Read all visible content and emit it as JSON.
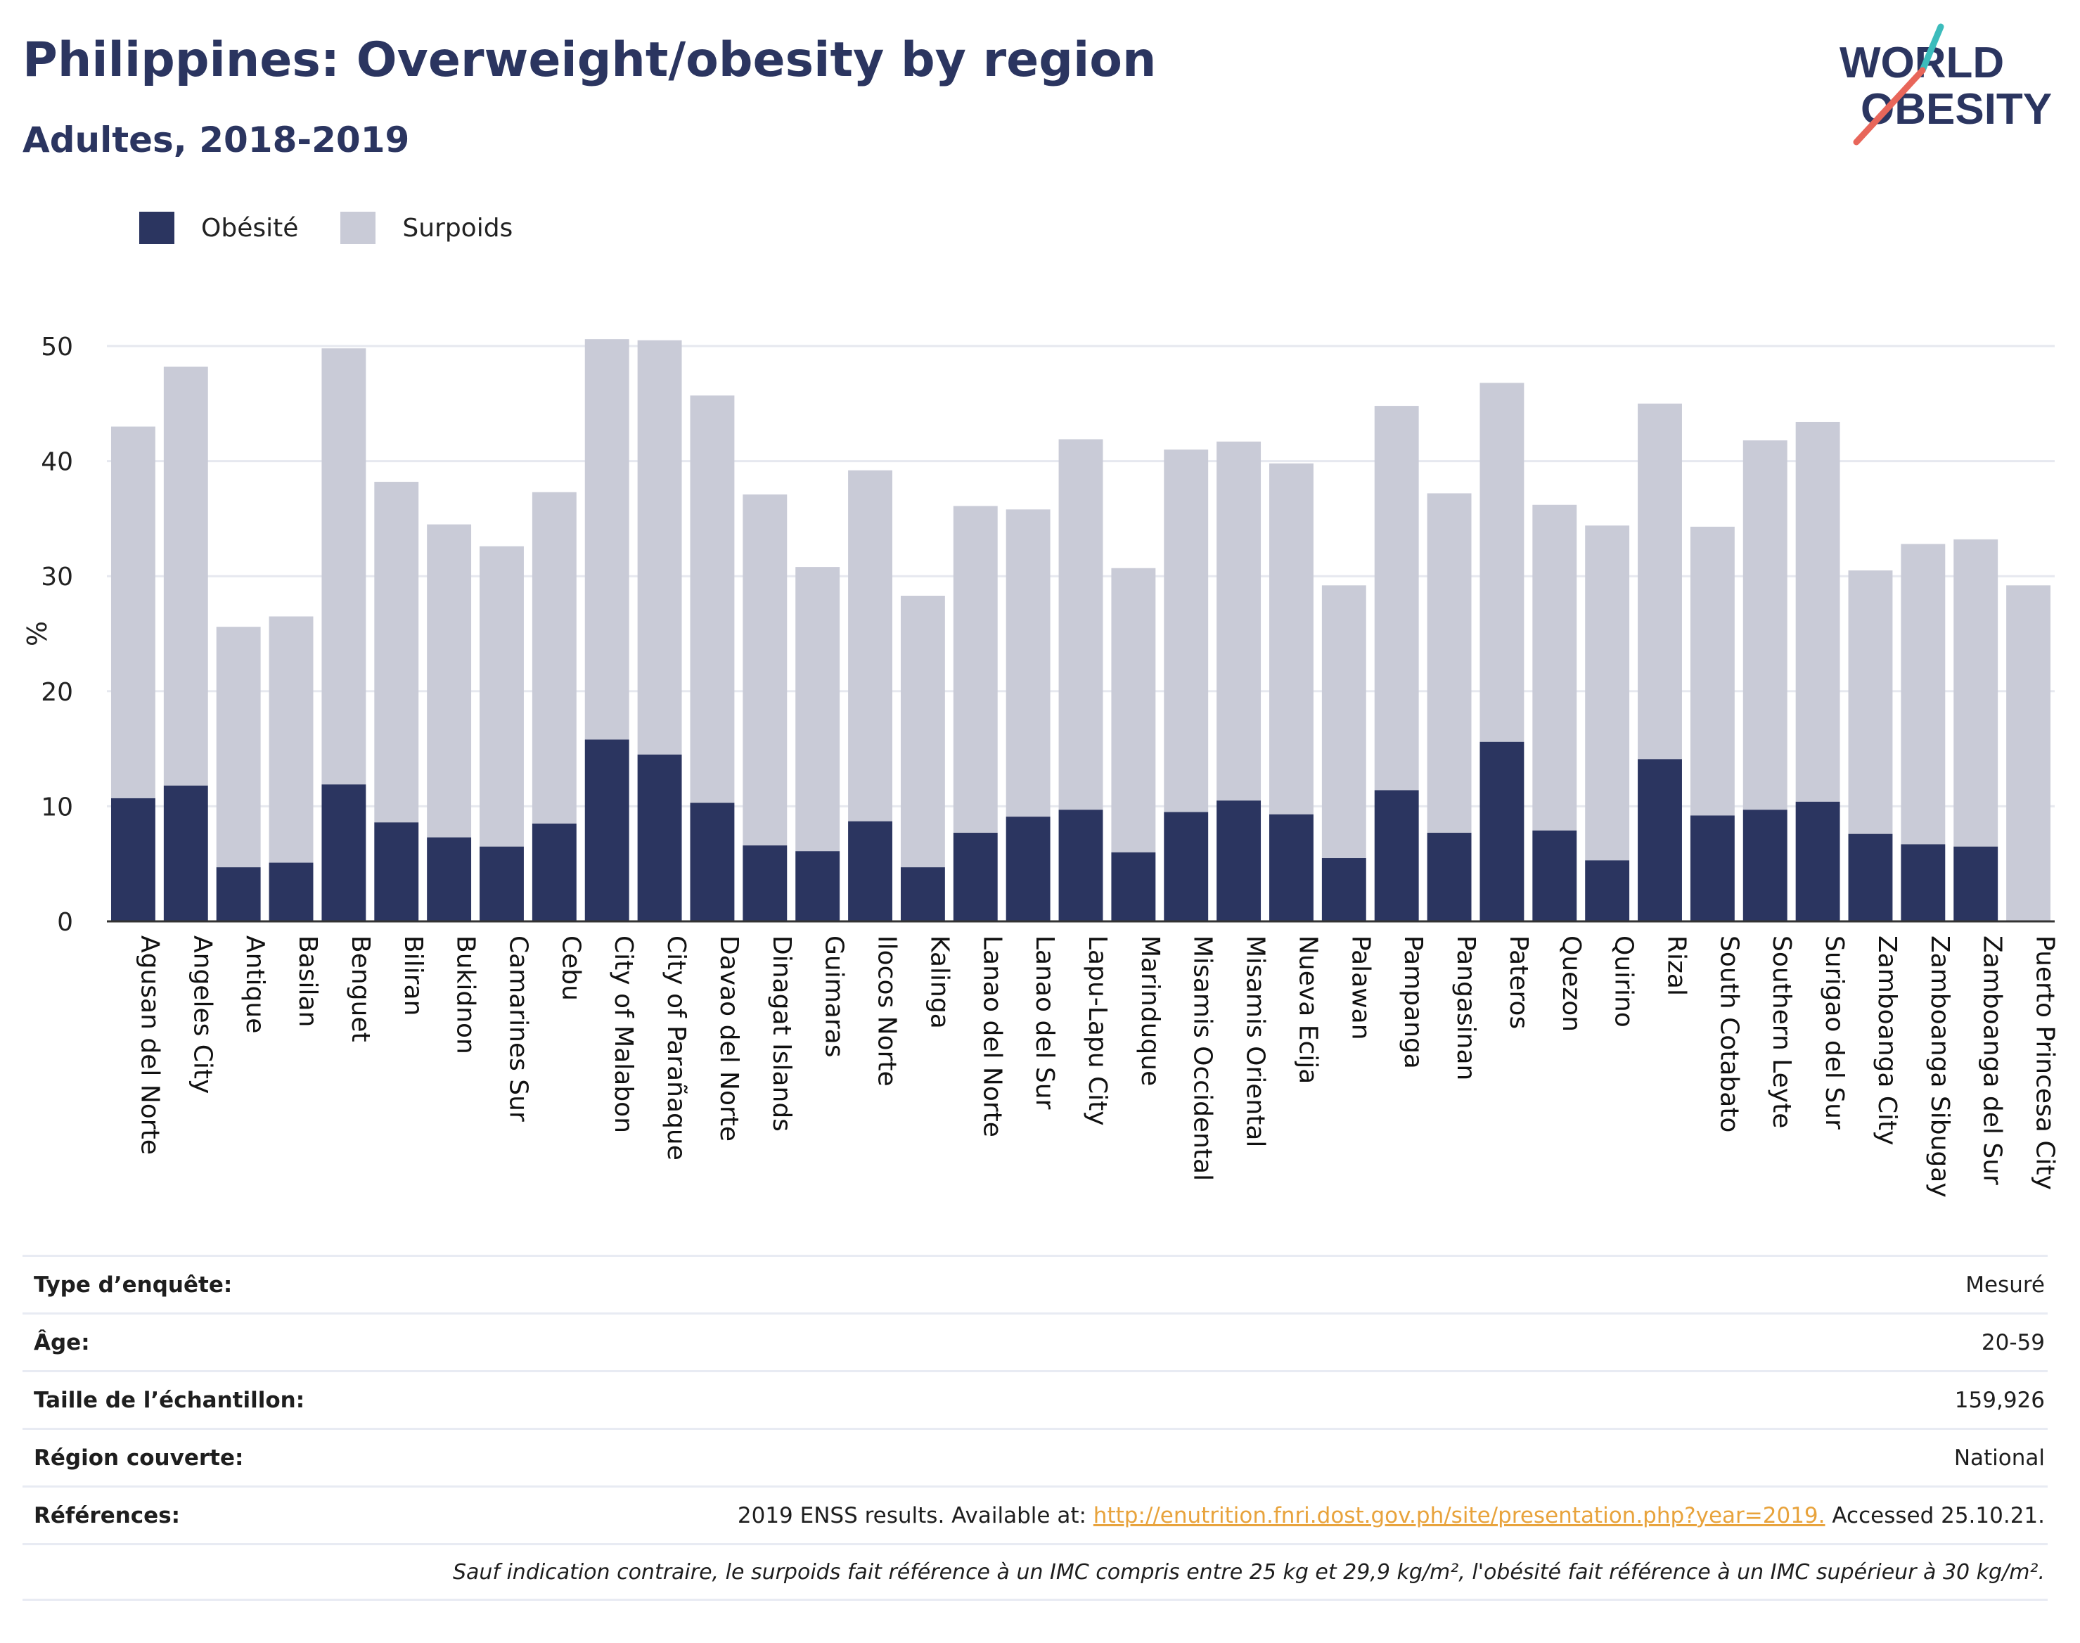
{
  "header": {
    "title": "Philippines: Overweight/obesity by region",
    "subtitle": "Adultes, 2018-2019"
  },
  "logo": {
    "line1": "WORLD",
    "line2": "OBESITY"
  },
  "colors": {
    "obesity": "#2b3560",
    "overweight": "#c9cbd7",
    "accent": "#2b3560",
    "logo_slash_red": "#e8665a",
    "logo_slash_teal": "#3cbcbc",
    "link": "#e8a33c"
  },
  "chart_data": {
    "type": "bar",
    "stacked": true,
    "ylabel": "%",
    "ylim": [
      0,
      50
    ],
    "yticks": [
      0,
      10,
      20,
      30,
      40,
      50
    ],
    "grid": true,
    "legend_placement": "top-left",
    "categories": [
      "Agusan del Norte",
      "Angeles City",
      "Antique",
      "Basilan",
      "Benguet",
      "Biliran",
      "Bukidnon",
      "Camarines Sur",
      "Cebu",
      "City of Malabon",
      "City of Parañaque",
      "Davao del Norte",
      "Dinagat Islands",
      "Guimaras",
      "Ilocos Norte",
      "Kalinga",
      "Lanao del Norte",
      "Lanao del Sur",
      "Lapu-Lapu City",
      "Marinduque",
      "Misamis Occidental",
      "Misamis Oriental",
      "Nueva Ecija",
      "Palawan",
      "Pampanga",
      "Pangasinan",
      "Pateros",
      "Quezon",
      "Quirino",
      "Rizal",
      "South Cotabato",
      "Southern Leyte",
      "Surigao del Sur",
      "Zamboanga City",
      "Zamboanga Sibugay",
      "Zamboanga del Sur",
      "Puerto Princesa City"
    ],
    "series": [
      {
        "name": "Obésité",
        "values": [
          10.7,
          11.8,
          4.7,
          5.1,
          11.9,
          8.6,
          7.3,
          6.5,
          8.5,
          15.8,
          14.5,
          10.3,
          6.6,
          6.1,
          8.7,
          4.7,
          7.7,
          9.1,
          9.7,
          6.0,
          9.5,
          10.5,
          9.3,
          5.5,
          11.4,
          7.7,
          15.6,
          7.9,
          5.3,
          14.1,
          9.2,
          9.7,
          10.4,
          7.6,
          6.7,
          6.5,
          0
        ]
      },
      {
        "name": "Surpoids",
        "values": [
          32.3,
          36.4,
          20.9,
          21.4,
          37.9,
          29.6,
          27.2,
          26.1,
          28.8,
          34.8,
          36.0,
          35.4,
          30.5,
          24.7,
          30.5,
          23.6,
          28.4,
          26.7,
          32.2,
          24.7,
          31.5,
          31.2,
          30.5,
          23.7,
          33.4,
          29.5,
          31.2,
          28.3,
          29.1,
          30.9,
          25.1,
          32.1,
          33.0,
          22.9,
          26.1,
          26.7,
          29.2
        ]
      }
    ]
  },
  "meta": {
    "rows": [
      {
        "label": "Type d’enquête:",
        "value": "Mesuré"
      },
      {
        "label": "Âge:",
        "value": "20-59"
      },
      {
        "label": "Taille de l’échantillon:",
        "value": "159,926"
      },
      {
        "label": "Région couverte:",
        "value": "National"
      }
    ],
    "references": {
      "label": "Références:",
      "prefix": "2019 ENSS results. Available at: ",
      "link": "http://enutrition.fnri.dost.gov.ph/site/presentation.php?year=2019.",
      "suffix": " Accessed 25.10.21."
    },
    "note": "Sauf indication contraire, le surpoids fait référence à un IMC compris entre 25 kg et 29,9 kg/m², l'obésité fait référence à un IMC supérieur à 30 kg/m²."
  }
}
